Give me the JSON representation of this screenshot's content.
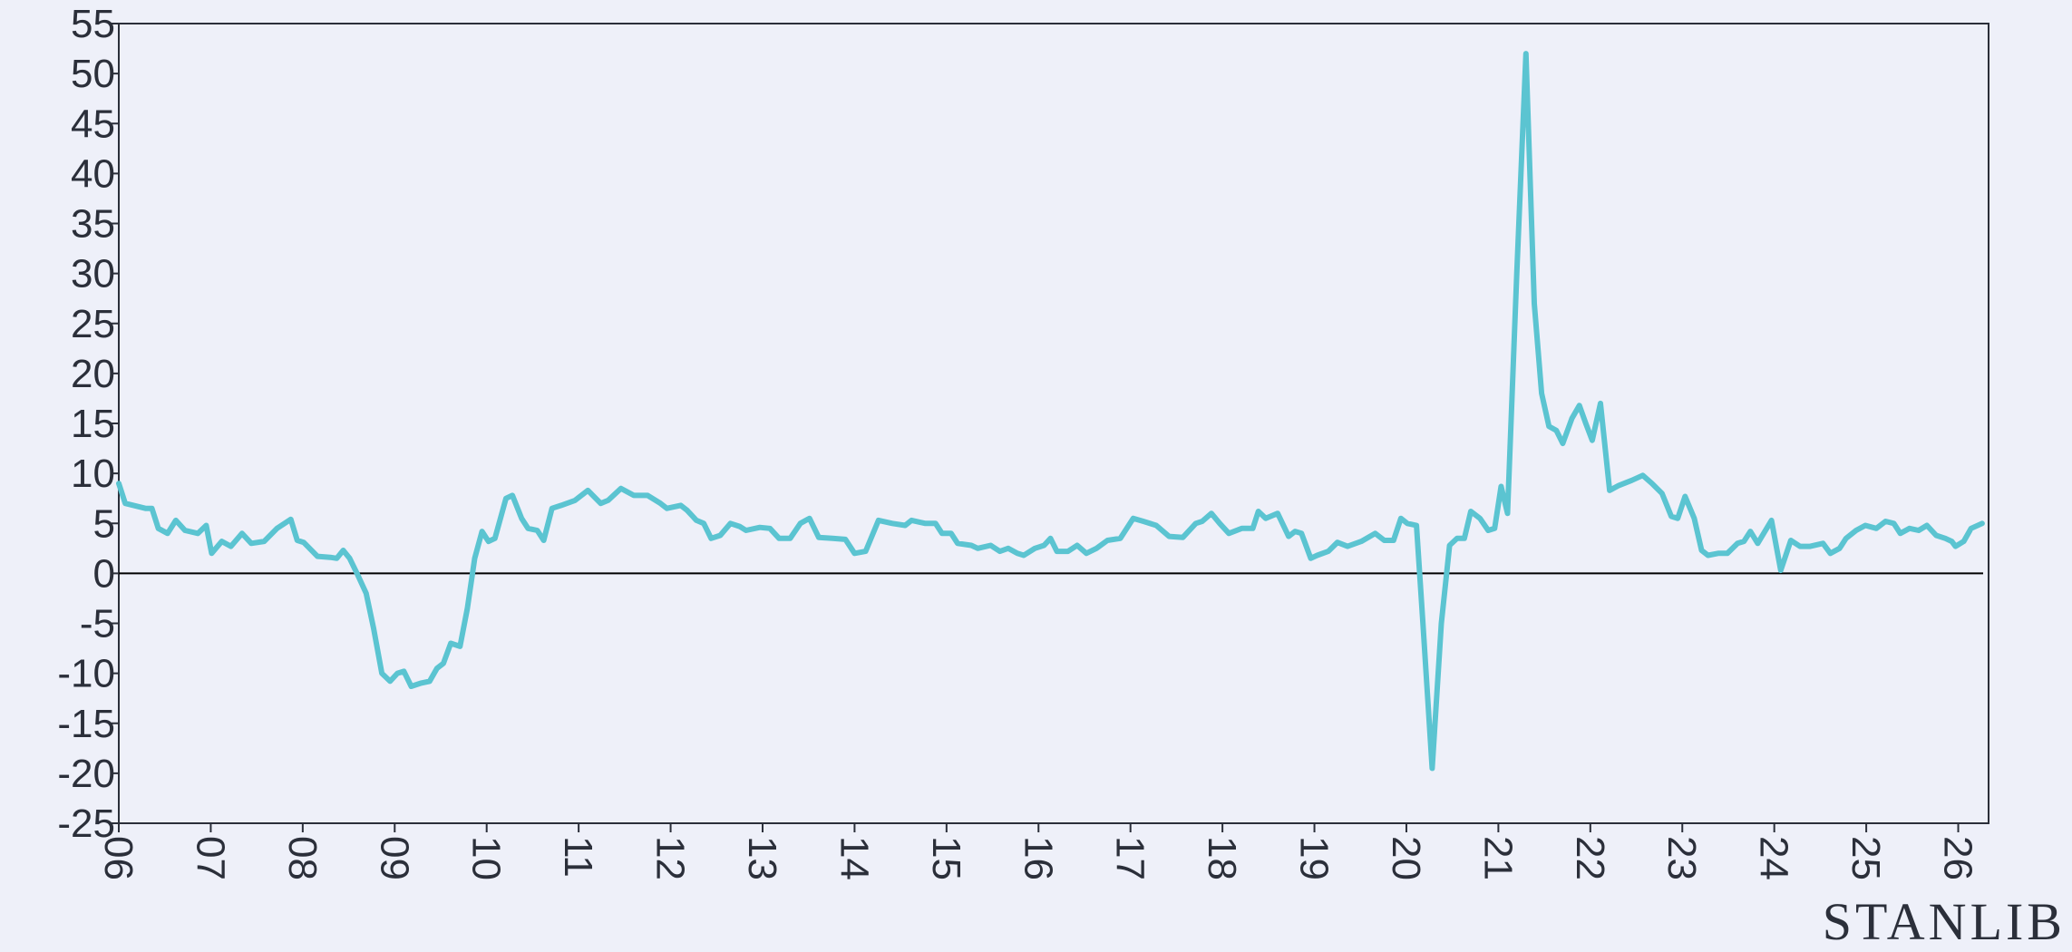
{
  "chart_data": {
    "type": "line",
    "brand": "STANLIB",
    "xlim": [
      2006,
      2026.33
    ],
    "ylim": [
      -25,
      55
    ],
    "yticks": [
      -25,
      -20,
      -15,
      -10,
      -5,
      0,
      5,
      10,
      15,
      20,
      25,
      30,
      35,
      40,
      45,
      50,
      55
    ],
    "xticks": [
      {
        "value": 2006,
        "label": "06"
      },
      {
        "value": 2007,
        "label": "07"
      },
      {
        "value": 2008,
        "label": "08"
      },
      {
        "value": 2009,
        "label": "09"
      },
      {
        "value": 2010,
        "label": "10"
      },
      {
        "value": 2011,
        "label": "11"
      },
      {
        "value": 2012,
        "label": "12"
      },
      {
        "value": 2013,
        "label": "13"
      },
      {
        "value": 2014,
        "label": "14"
      },
      {
        "value": 2015,
        "label": "15"
      },
      {
        "value": 2016,
        "label": "16"
      },
      {
        "value": 2017,
        "label": "17"
      },
      {
        "value": 2018,
        "label": "18"
      },
      {
        "value": 2019,
        "label": "19"
      },
      {
        "value": 2020,
        "label": "20"
      },
      {
        "value": 2021,
        "label": "21"
      },
      {
        "value": 2022,
        "label": "22"
      },
      {
        "value": 2023,
        "label": "23"
      },
      {
        "value": 2024,
        "label": "24"
      },
      {
        "value": 2025,
        "label": "25"
      },
      {
        "value": 2026,
        "label": "26"
      }
    ],
    "x": [
      2006.0,
      2006.07,
      2006.29,
      2006.36,
      2006.43,
      2006.53,
      2006.62,
      2006.72,
      2006.86,
      2006.95,
      2007.01,
      2007.12,
      2007.22,
      2007.34,
      2007.44,
      2007.58,
      2007.72,
      2007.87,
      2007.94,
      2008.01,
      2008.16,
      2008.3,
      2008.37,
      2008.44,
      2008.51,
      2008.59,
      2008.69,
      2008.77,
      2008.86,
      2008.95,
      2009.03,
      2009.1,
      2009.18,
      2009.28,
      2009.38,
      2009.46,
      2009.53,
      2009.61,
      2009.71,
      2009.79,
      2009.87,
      2009.95,
      2010.02,
      2010.09,
      2010.21,
      2010.28,
      2010.38,
      2010.45,
      2010.55,
      2010.62,
      2010.71,
      2010.81,
      2010.96,
      2011.1,
      2011.24,
      2011.32,
      2011.46,
      2011.6,
      2011.75,
      2011.89,
      2011.96,
      2012.11,
      2012.18,
      2012.28,
      2012.36,
      2012.44,
      2012.54,
      2012.65,
      2012.75,
      2012.82,
      2012.97,
      2013.08,
      2013.18,
      2013.3,
      2013.41,
      2013.51,
      2013.61,
      2013.76,
      2013.9,
      2014.0,
      2014.12,
      2014.26,
      2014.41,
      2014.55,
      2014.62,
      2014.77,
      2014.88,
      2014.95,
      2015.05,
      2015.12,
      2015.27,
      2015.34,
      2015.48,
      2015.58,
      2015.67,
      2015.77,
      2015.84,
      2015.96,
      2016.06,
      2016.13,
      2016.2,
      2016.32,
      2016.42,
      2016.52,
      2016.63,
      2016.75,
      2016.89,
      2017.03,
      2017.14,
      2017.28,
      2017.42,
      2017.57,
      2017.71,
      2017.78,
      2017.88,
      2017.97,
      2018.07,
      2018.21,
      2018.33,
      2018.39,
      2018.47,
      2018.6,
      2018.72,
      2018.79,
      2018.86,
      2018.96,
      2019.03,
      2019.15,
      2019.25,
      2019.36,
      2019.51,
      2019.66,
      2019.76,
      2019.86,
      2019.94,
      2020.01,
      2020.11,
      2020.18,
      2020.28,
      2020.38,
      2020.47,
      2020.55,
      2020.63,
      2020.7,
      2020.8,
      2020.89,
      2020.96,
      2021.03,
      2021.1,
      2021.2,
      2021.3,
      2021.39,
      2021.47,
      2021.55,
      2021.63,
      2021.7,
      2021.8,
      2021.88,
      2021.95,
      2022.02,
      2022.11,
      2022.21,
      2022.31,
      2022.45,
      2022.57,
      2022.67,
      2022.78,
      2022.88,
      2022.95,
      2023.03,
      2023.13,
      2023.21,
      2023.28,
      2023.39,
      2023.49,
      2023.6,
      2023.67,
      2023.74,
      2023.82,
      2023.97,
      2024.07,
      2024.18,
      2024.28,
      2024.39,
      2024.53,
      2024.61,
      2024.71,
      2024.78,
      2024.89,
      2024.99,
      2025.11,
      2025.21,
      2025.3,
      2025.37,
      2025.47,
      2025.57,
      2025.66,
      2025.76,
      2025.86,
      2025.93,
      2025.97,
      2026.06,
      2026.14,
      2026.26
    ],
    "series": [
      {
        "color": "#5bc4d1",
        "values": [
          9,
          7,
          6.5,
          6.5,
          4.5,
          4,
          5.3,
          4.3,
          4,
          4.8,
          2,
          3.2,
          2.7,
          4,
          3,
          3.2,
          4.5,
          5.4,
          3.3,
          3.1,
          1.7,
          1.6,
          1.5,
          2.3,
          1.5,
          0,
          -2,
          -5.5,
          -10,
          -10.8,
          -10,
          -9.8,
          -11.3,
          -11,
          -10.8,
          -9.5,
          -9,
          -7,
          -7.3,
          -3.5,
          1.5,
          4.2,
          3.2,
          3.5,
          7.5,
          7.8,
          5.5,
          4.5,
          4.3,
          3.3,
          6.5,
          6.8,
          7.3,
          8.3,
          7,
          7.3,
          8.5,
          7.8,
          7.8,
          7,
          6.5,
          6.8,
          6.3,
          5.3,
          5,
          3.5,
          3.8,
          5,
          4.7,
          4.3,
          4.6,
          4.5,
          3.5,
          3.5,
          5,
          5.5,
          3.6,
          3.5,
          3.4,
          2,
          2.2,
          5.3,
          5,
          4.8,
          5.3,
          5,
          5,
          4,
          4,
          3,
          2.8,
          2.5,
          2.8,
          2.2,
          2.5,
          2,
          1.8,
          2.5,
          2.8,
          3.5,
          2.2,
          2.2,
          2.8,
          2,
          2.5,
          3.3,
          3.5,
          5.5,
          5.2,
          4.8,
          3.7,
          3.6,
          5,
          5.2,
          6,
          5,
          4,
          4.5,
          4.5,
          6.2,
          5.5,
          6,
          3.7,
          4.2,
          4,
          1.5,
          1.8,
          2.2,
          3.1,
          2.7,
          3.2,
          4,
          3.3,
          3.3,
          5.5,
          5,
          4.8,
          -5,
          -19.5,
          -5,
          2.8,
          3.5,
          3.5,
          6.2,
          5.5,
          4.3,
          4.5,
          8.7,
          6,
          30,
          52,
          27,
          18,
          14.7,
          14.3,
          13,
          15.5,
          16.8,
          15,
          13.3,
          17,
          8.3,
          8.8,
          9.3,
          9.8,
          9,
          8,
          5.7,
          5.5,
          7.7,
          5.5,
          2.3,
          1.8,
          2,
          2,
          3,
          3.2,
          4.2,
          3,
          5.3,
          0.3,
          3.3,
          2.7,
          2.7,
          3,
          2,
          2.5,
          3.5,
          4.3,
          4.8,
          4.5,
          5.2,
          5,
          4,
          4.5,
          4.3,
          4.8,
          3.8,
          3.5,
          3.2,
          2.7,
          3.2,
          4.5,
          5
        ]
      }
    ]
  }
}
